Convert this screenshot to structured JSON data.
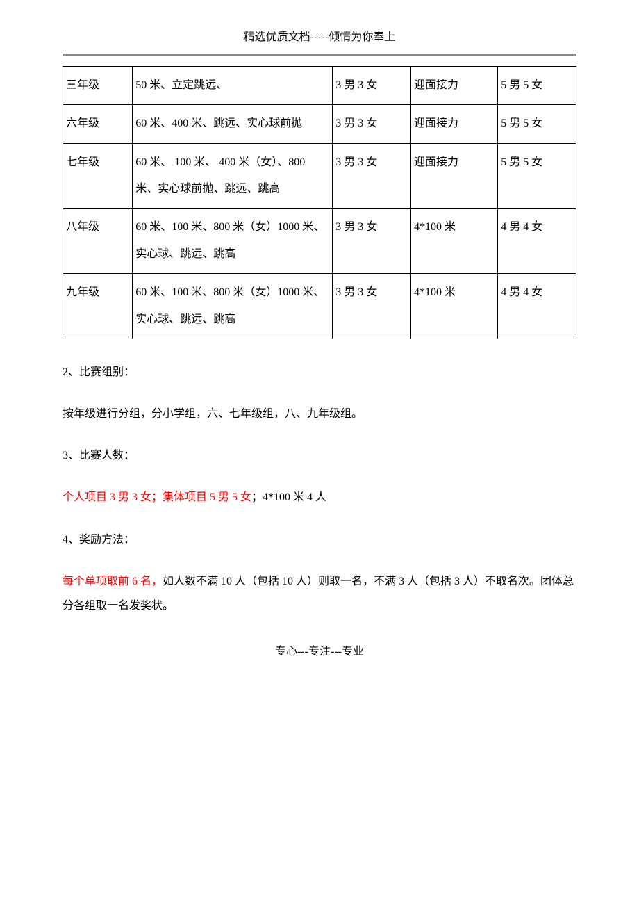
{
  "header": {
    "text": "精选优质文档-----倾情为你奉上"
  },
  "table": {
    "rows": [
      {
        "grade": "三年级",
        "events": "50 米、立定跳远、",
        "individual": "3 男 3 女",
        "relay": "迎面接力",
        "group": "5 男 5 女"
      },
      {
        "grade": "六年级",
        "events": "60 米、400 米、跳远、实心球前抛",
        "individual": "3 男 3 女",
        "relay": "迎面接力",
        "group": "5 男 5 女"
      },
      {
        "grade": "七年级",
        "events": "60 米、 100 米、 400 米（女）、800 米、实心球前抛、跳远、跳高",
        "individual": "3 男 3 女",
        "relay": "迎面接力",
        "group": "5 男 5 女"
      },
      {
        "grade": "八年级",
        "events": "60 米、100 米、800 米（女）1000 米、实心球、跳远、跳高",
        "individual": "3 男 3 女",
        "relay": "4*100 米",
        "group": "4 男 4 女"
      },
      {
        "grade": "九年级",
        "events": "60 米、100 米、800 米（女）1000 米、实心球、跳远、跳高",
        "individual": "3 男 3 女",
        "relay": "4*100 米",
        "group": "4 男 4 女"
      }
    ]
  },
  "sections": {
    "s2_title": "2、比赛组别：",
    "s2_body": "按年级进行分组，分小学组，六、七年级组，八、九年级组。",
    "s3_title": "3、比赛人数：",
    "s3_red": "个人项目 3 男 3 女；集体项目 5 男 5 女",
    "s3_rest": "；4*100 米 4 人",
    "s4_title": "4、奖励方法：",
    "s4_red": "每个单项取前 6 名，",
    "s4_rest": "如人数不满 10 人（包括 10 人）则取一名，不满 3 人（包括 3 人）不取名次。团体总分各组取一名发奖状。"
  },
  "footer": {
    "text": "专心---专注---专业"
  }
}
